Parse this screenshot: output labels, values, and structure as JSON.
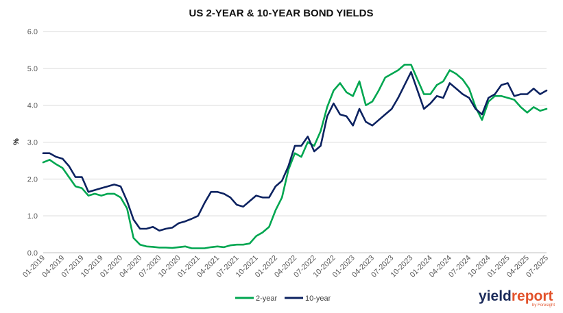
{
  "chart_data": {
    "type": "line",
    "title": "US 2-YEAR & 10-YEAR BOND YIELDS",
    "xlabel": "",
    "ylabel": "%",
    "ylim": [
      0.0,
      6.0
    ],
    "yticks": [
      "0.0",
      "1.0",
      "2.0",
      "3.0",
      "4.0",
      "5.0",
      "6.0"
    ],
    "xlim": [
      "2019-01",
      "2025-07"
    ],
    "xticks": [
      "01-2019",
      "04-2019",
      "07-2019",
      "10-2019",
      "01-2020",
      "04-2020",
      "07-2020",
      "10-2020",
      "01-2021",
      "04-2021",
      "07-2021",
      "10-2021",
      "01-2022",
      "04-2022",
      "07-2022",
      "10-2022",
      "01-2023",
      "04-2023",
      "07-2023",
      "10-2023",
      "01-2024",
      "04-2024",
      "07-2024",
      "10-2024",
      "01-2025",
      "04-2025",
      "07-2025"
    ],
    "grid": true,
    "legend_position": "bottom",
    "series": [
      {
        "name": "2-year",
        "color": "#00a650",
        "x": [
          "2019-01",
          "2019-02",
          "2019-03",
          "2019-04",
          "2019-05",
          "2019-06",
          "2019-07",
          "2019-08",
          "2019-09",
          "2019-10",
          "2019-11",
          "2019-12",
          "2020-01",
          "2020-02",
          "2020-03",
          "2020-04",
          "2020-05",
          "2020-06",
          "2020-07",
          "2020-08",
          "2020-09",
          "2020-10",
          "2020-11",
          "2020-12",
          "2021-01",
          "2021-02",
          "2021-03",
          "2021-04",
          "2021-05",
          "2021-06",
          "2021-07",
          "2021-08",
          "2021-09",
          "2021-10",
          "2021-11",
          "2021-12",
          "2022-01",
          "2022-02",
          "2022-03",
          "2022-04",
          "2022-05",
          "2022-06",
          "2022-07",
          "2022-08",
          "2022-09",
          "2022-10",
          "2022-11",
          "2022-12",
          "2023-01",
          "2023-02",
          "2023-03",
          "2023-04",
          "2023-05",
          "2023-06",
          "2023-07",
          "2023-08",
          "2023-09",
          "2023-10",
          "2023-11",
          "2023-12",
          "2024-01",
          "2024-02",
          "2024-03",
          "2024-04",
          "2024-05",
          "2024-06",
          "2024-07",
          "2024-08",
          "2024-09",
          "2024-10",
          "2024-11",
          "2024-12",
          "2025-01",
          "2025-02",
          "2025-03",
          "2025-04",
          "2025-05",
          "2025-06",
          "2025-07"
        ],
        "values": [
          2.45,
          2.52,
          2.4,
          2.3,
          2.05,
          1.8,
          1.75,
          1.55,
          1.6,
          1.55,
          1.6,
          1.6,
          1.5,
          1.2,
          0.4,
          0.22,
          0.17,
          0.16,
          0.14,
          0.14,
          0.13,
          0.15,
          0.17,
          0.12,
          0.12,
          0.12,
          0.15,
          0.17,
          0.15,
          0.2,
          0.22,
          0.22,
          0.25,
          0.45,
          0.55,
          0.7,
          1.15,
          1.5,
          2.25,
          2.7,
          2.6,
          3.0,
          2.9,
          3.3,
          3.95,
          4.4,
          4.6,
          4.35,
          4.25,
          4.65,
          4.0,
          4.1,
          4.4,
          4.75,
          4.85,
          4.95,
          5.1,
          5.1,
          4.7,
          4.3,
          4.3,
          4.55,
          4.65,
          4.95,
          4.85,
          4.7,
          4.45,
          3.95,
          3.6,
          4.1,
          4.25,
          4.25,
          4.2,
          4.15,
          3.95,
          3.8,
          3.95,
          3.85,
          3.9
        ]
      },
      {
        "name": "10-year",
        "color": "#0c2260",
        "x": [
          "2019-01",
          "2019-02",
          "2019-03",
          "2019-04",
          "2019-05",
          "2019-06",
          "2019-07",
          "2019-08",
          "2019-09",
          "2019-10",
          "2019-11",
          "2019-12",
          "2020-01",
          "2020-02",
          "2020-03",
          "2020-04",
          "2020-05",
          "2020-06",
          "2020-07",
          "2020-08",
          "2020-09",
          "2020-10",
          "2020-11",
          "2020-12",
          "2021-01",
          "2021-02",
          "2021-03",
          "2021-04",
          "2021-05",
          "2021-06",
          "2021-07",
          "2021-08",
          "2021-09",
          "2021-10",
          "2021-11",
          "2021-12",
          "2022-01",
          "2022-02",
          "2022-03",
          "2022-04",
          "2022-05",
          "2022-06",
          "2022-07",
          "2022-08",
          "2022-09",
          "2022-10",
          "2022-11",
          "2022-12",
          "2023-01",
          "2023-02",
          "2023-03",
          "2023-04",
          "2023-05",
          "2023-06",
          "2023-07",
          "2023-08",
          "2023-09",
          "2023-10",
          "2023-11",
          "2023-12",
          "2024-01",
          "2024-02",
          "2024-03",
          "2024-04",
          "2024-05",
          "2024-06",
          "2024-07",
          "2024-08",
          "2024-09",
          "2024-10",
          "2024-11",
          "2024-12",
          "2025-01",
          "2025-02",
          "2025-03",
          "2025-04",
          "2025-05",
          "2025-06",
          "2025-07"
        ],
        "values": [
          2.7,
          2.7,
          2.6,
          2.55,
          2.35,
          2.05,
          2.05,
          1.65,
          1.7,
          1.75,
          1.8,
          1.85,
          1.8,
          1.4,
          0.9,
          0.65,
          0.65,
          0.7,
          0.6,
          0.65,
          0.68,
          0.8,
          0.85,
          0.92,
          1.0,
          1.35,
          1.65,
          1.65,
          1.6,
          1.5,
          1.3,
          1.25,
          1.4,
          1.55,
          1.5,
          1.5,
          1.8,
          1.95,
          2.35,
          2.9,
          2.9,
          3.15,
          2.75,
          2.9,
          3.7,
          4.05,
          3.75,
          3.7,
          3.45,
          3.9,
          3.55,
          3.45,
          3.6,
          3.75,
          3.9,
          4.2,
          4.55,
          4.9,
          4.4,
          3.9,
          4.05,
          4.25,
          4.2,
          4.6,
          4.45,
          4.3,
          4.2,
          3.9,
          3.75,
          4.2,
          4.3,
          4.55,
          4.6,
          4.25,
          4.3,
          4.3,
          4.45,
          4.3,
          4.4
        ]
      }
    ]
  },
  "brand": {
    "name_left": "yield",
    "name_right": "report",
    "tagline": "by Foresight",
    "color_left": "#1a2a5a",
    "color_right": "#e2522b"
  }
}
